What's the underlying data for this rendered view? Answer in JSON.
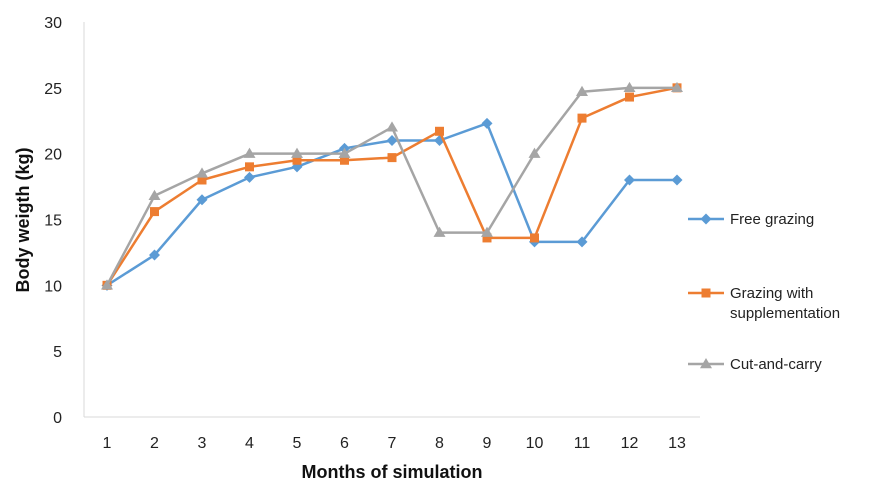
{
  "chart_data": {
    "type": "line",
    "title": "",
    "xlabel": "Months of simulation",
    "ylabel": "Body weigth (kg)",
    "categories": [
      "1",
      "2",
      "3",
      "4",
      "5",
      "6",
      "7",
      "8",
      "9",
      "10",
      "11",
      "12",
      "13"
    ],
    "ylim": [
      0,
      30
    ],
    "yticks": [
      "0",
      "5",
      "10",
      "15",
      "20",
      "25",
      "30"
    ],
    "grid": false,
    "legend_position": "right",
    "series": [
      {
        "name": "Free grazing",
        "color": "#5B9BD5",
        "marker": "diamond",
        "values": [
          10,
          12.3,
          16.5,
          18.2,
          19,
          20.4,
          21,
          21,
          22.3,
          13.3,
          13.3,
          18,
          18
        ]
      },
      {
        "name": "Grazing with supplementation",
        "name_lines": [
          "Grazing with",
          "supplementation"
        ],
        "color": "#ED7D31",
        "marker": "square",
        "values": [
          10,
          15.6,
          18,
          19,
          19.5,
          19.5,
          19.7,
          21.7,
          13.6,
          13.6,
          22.7,
          24.3,
          25
        ]
      },
      {
        "name": "Cut-and-carry",
        "color": "#A5A5A5",
        "marker": "triangle",
        "values": [
          10,
          16.8,
          18.5,
          20,
          20,
          20,
          22,
          14,
          14,
          20,
          24.7,
          25,
          25
        ]
      }
    ]
  }
}
